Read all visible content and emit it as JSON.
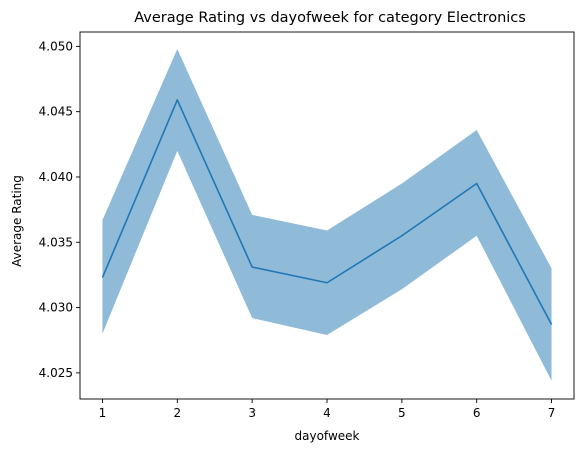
{
  "chart_data": {
    "type": "line",
    "title": "Average Rating vs dayofweek for category Electronics",
    "xlabel": "dayofweek",
    "ylabel": "Average Rating",
    "x": [
      1,
      2,
      3,
      4,
      5,
      6,
      7
    ],
    "series": [
      {
        "values": [
          4.0323,
          4.0459,
          4.0331,
          4.0319,
          4.0355,
          4.0395,
          4.0287
        ],
        "ci_lower": [
          4.028,
          4.042,
          4.0292,
          4.0279,
          4.0314,
          4.0355,
          4.0244
        ],
        "ci_upper": [
          4.0367,
          4.0498,
          4.0371,
          4.0359,
          4.0395,
          4.0436,
          4.033
        ],
        "color": "#1f77b4",
        "band_color": "#8fbbd9"
      }
    ],
    "xticks": [
      1,
      2,
      3,
      4,
      5,
      6,
      7
    ],
    "yticks": [
      4.025,
      4.03,
      4.035,
      4.04,
      4.045,
      4.05
    ],
    "ytick_labels": [
      "4.025",
      "4.030",
      "4.035",
      "4.040",
      "4.045",
      "4.050"
    ],
    "xlim": [
      0.7,
      7.3
    ],
    "ylim": [
      4.023,
      4.0511
    ],
    "grid": false,
    "legend": "none"
  }
}
